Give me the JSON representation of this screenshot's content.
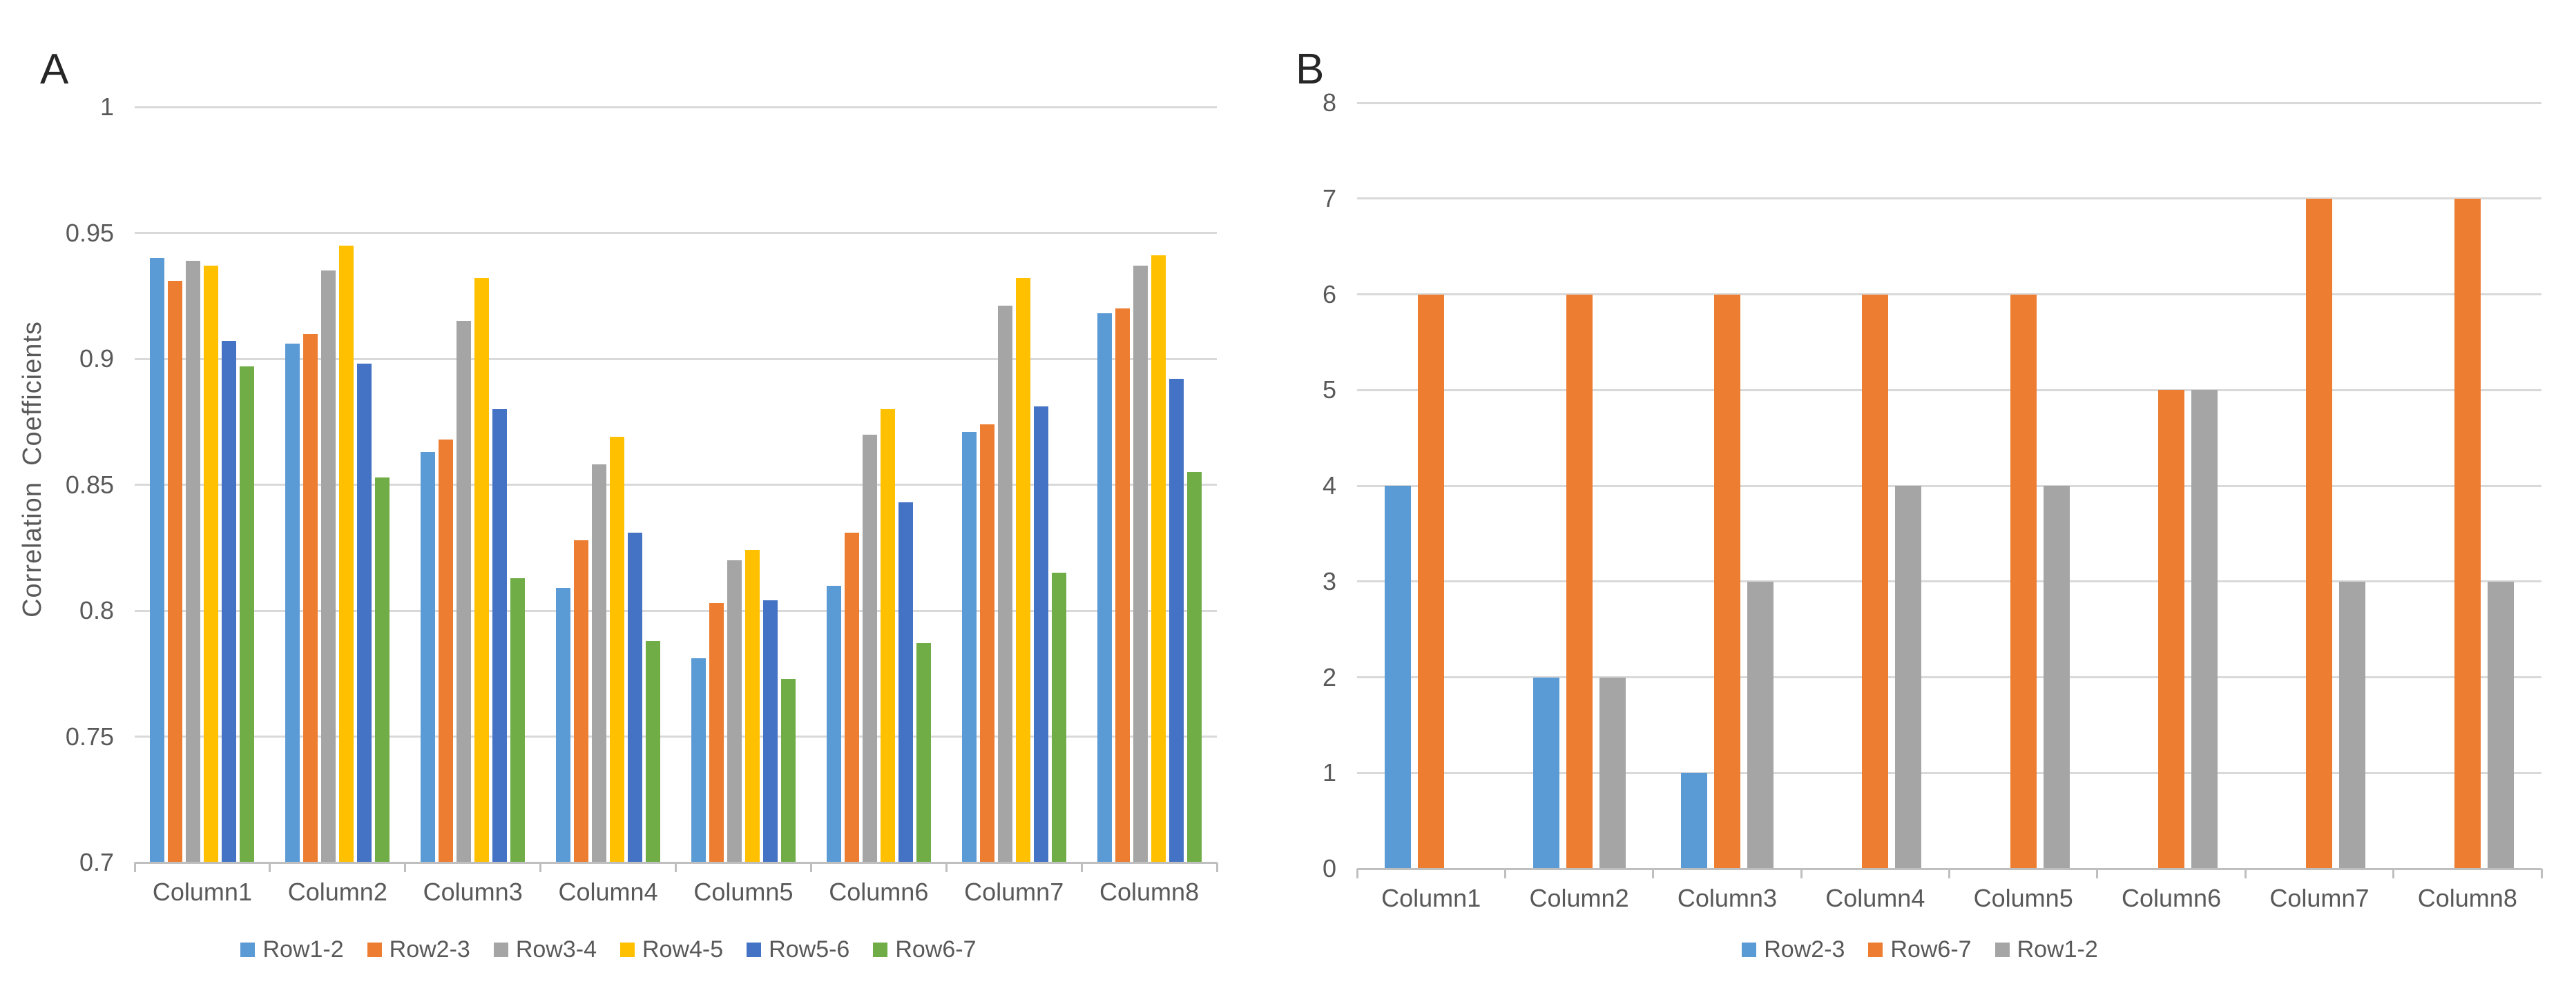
{
  "figure": {
    "background_color": "#ffffff",
    "grid_color": "#D9D9D9",
    "axis_color": "#BFBFBF",
    "text_color": "#595959",
    "panel_label_color": "#262626"
  },
  "chart_data": [
    {
      "panel_label": "A",
      "type": "bar",
      "title": "",
      "xlabel": "",
      "ylabel": "Correlation  Coefficients",
      "ylim": [
        0.7,
        1.0
      ],
      "ytick_values": [
        1,
        0.95,
        0.9,
        0.85,
        0.8,
        0.75,
        0.7
      ],
      "ytick_labels": [
        "1",
        "0.95",
        "0.9",
        "0.85",
        "0.8",
        "0.75",
        "0.7"
      ],
      "grid": true,
      "legend_position": "bottom",
      "categories": [
        "Column1",
        "Column2",
        "Column3",
        "Column4",
        "Column5",
        "Column6",
        "Column7",
        "Column8"
      ],
      "series": [
        {
          "name": "Row1-2",
          "color": "#5B9BD5",
          "values": [
            0.94,
            0.906,
            0.863,
            0.809,
            0.781,
            0.81,
            0.871,
            0.918
          ]
        },
        {
          "name": "Row2-3",
          "color": "#ED7D31",
          "values": [
            0.931,
            0.91,
            0.868,
            0.828,
            0.803,
            0.831,
            0.874,
            0.92
          ]
        },
        {
          "name": "Row3-4",
          "color": "#A5A5A5",
          "values": [
            0.939,
            0.935,
            0.915,
            0.858,
            0.82,
            0.87,
            0.921,
            0.937
          ]
        },
        {
          "name": "Row4-5",
          "color": "#FFC000",
          "values": [
            0.937,
            0.945,
            0.932,
            0.869,
            0.824,
            0.88,
            0.932,
            0.941
          ]
        },
        {
          "name": "Row5-6",
          "color": "#4472C4",
          "values": [
            0.907,
            0.898,
            0.88,
            0.831,
            0.804,
            0.843,
            0.881,
            0.892
          ]
        },
        {
          "name": "Row6-7",
          "color": "#70AD47",
          "values": [
            0.897,
            0.853,
            0.813,
            0.788,
            0.773,
            0.787,
            0.815,
            0.855
          ]
        }
      ]
    },
    {
      "panel_label": "B",
      "type": "bar",
      "title": "",
      "xlabel": "",
      "ylabel": "",
      "ylim": [
        0,
        8
      ],
      "ytick_values": [
        8,
        7,
        6,
        5,
        4,
        3,
        2,
        1,
        0
      ],
      "ytick_labels": [
        "8",
        "7",
        "6",
        "5",
        "4",
        "3",
        "2",
        "1",
        "0"
      ],
      "grid": true,
      "legend_position": "bottom",
      "categories": [
        "Column1",
        "Column2",
        "Column3",
        "Column4",
        "Column5",
        "Column6",
        "Column7",
        "Column8"
      ],
      "series": [
        {
          "name": "Row2-3",
          "color": "#5B9BD5",
          "values": [
            4,
            2,
            1,
            0,
            0,
            0,
            0,
            0
          ]
        },
        {
          "name": "Row6-7",
          "color": "#ED7D31",
          "values": [
            6,
            6,
            6,
            6,
            6,
            5,
            7,
            7
          ]
        },
        {
          "name": "Row1-2",
          "color": "#A5A5A5",
          "values": [
            0,
            2,
            3,
            4,
            4,
            5,
            3,
            3
          ]
        }
      ]
    }
  ]
}
